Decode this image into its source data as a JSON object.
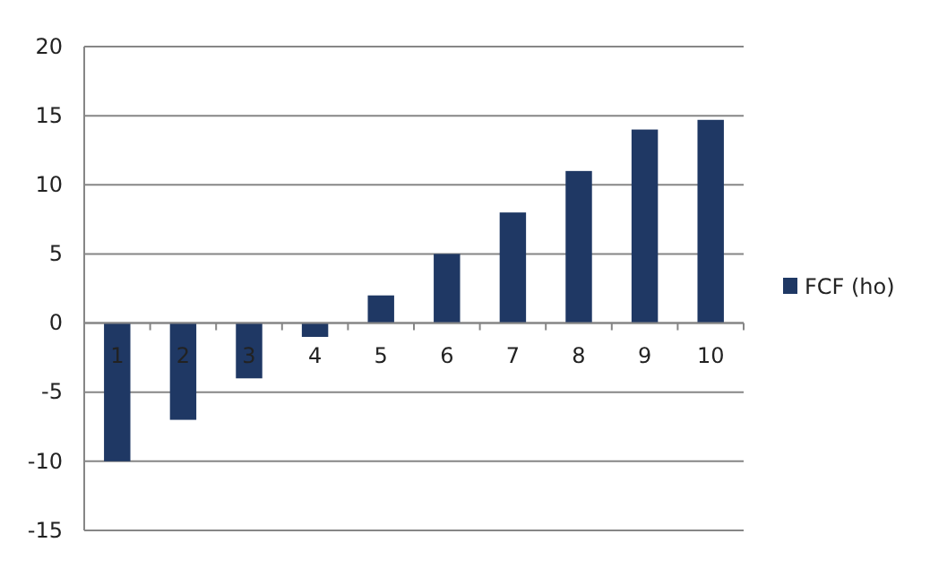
{
  "chart_data": {
    "type": "bar",
    "categories": [
      "1",
      "2",
      "3",
      "4",
      "5",
      "6",
      "7",
      "8",
      "9",
      "10"
    ],
    "series": [
      {
        "name": "FCF (ho)",
        "color": "#1f3864",
        "values": [
          -10,
          -7,
          -4,
          -1,
          2,
          5,
          8,
          11,
          14,
          14.7
        ]
      }
    ],
    "ylim": [
      -15,
      20
    ],
    "yticks": [
      -15,
      -10,
      -5,
      0,
      5,
      10,
      15,
      20
    ],
    "grid": "y",
    "legend": "right"
  }
}
